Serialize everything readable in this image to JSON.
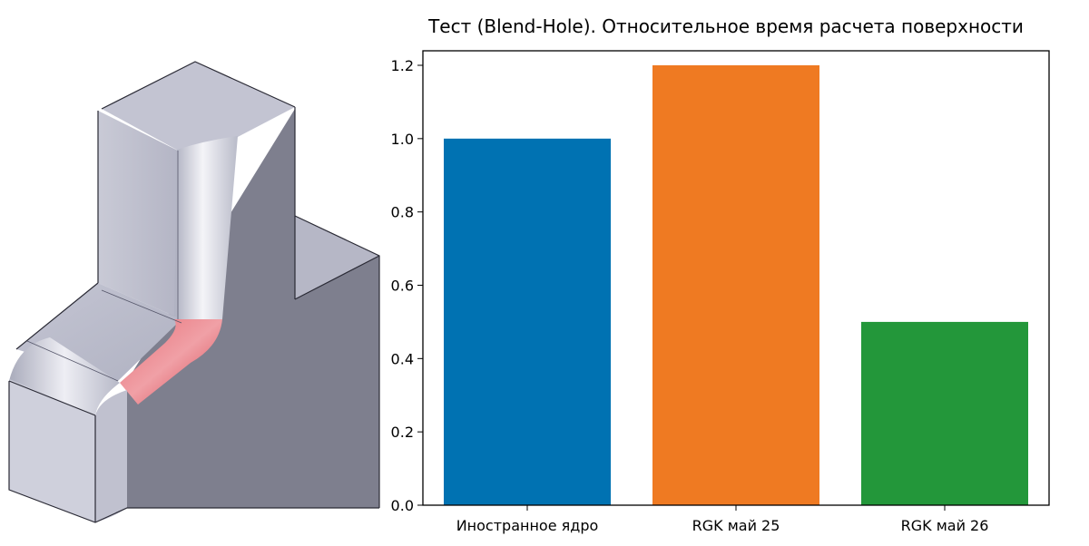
{
  "model_image": {
    "highlight_color": "#e0505a"
  },
  "chart_data": {
    "type": "bar",
    "title": "Тест (Blend-Hole). Относительное время расчета поверхности",
    "xlabel": "",
    "ylabel": "",
    "categories": [
      "Иностранное ядро",
      "RGK май 25",
      "RGK май 26"
    ],
    "values": [
      1.0,
      1.2,
      0.5
    ],
    "colors": [
      "#0072b2",
      "#ef7a22",
      "#23973a"
    ],
    "ylim": [
      0,
      1.2
    ],
    "yticks": [
      0.0,
      0.2,
      0.4,
      0.6,
      0.8,
      1.0,
      1.2
    ],
    "ytick_labels": [
      "0.0",
      "0.2",
      "0.4",
      "0.6",
      "0.8",
      "1.0",
      "1.2"
    ],
    "grid": false,
    "legend": "none"
  }
}
